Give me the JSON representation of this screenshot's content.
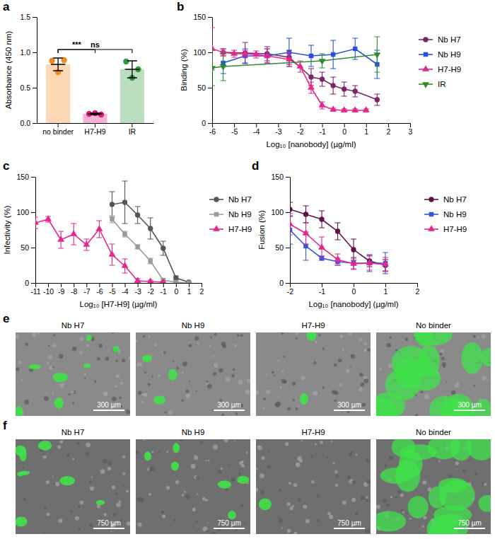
{
  "chart_data": [
    {
      "type": "bar",
      "panel_label": "a",
      "y_label": "Absorbance (450 nm)",
      "categories": [
        "no binder",
        "H7-H9",
        "IR"
      ],
      "values": [
        0.83,
        0.13,
        0.76
      ],
      "errors": [
        0.09,
        0.01,
        0.12
      ],
      "points": [
        [
          0.88,
          0.72,
          0.89
        ],
        [
          0.13,
          0.14,
          0.12
        ],
        [
          0.87,
          0.64,
          0.76
        ]
      ],
      "colors": [
        "#f5891f",
        "#e3177e",
        "#2e9a3a"
      ],
      "ylim": [
        0,
        1.5
      ],
      "yticks": [
        {
          "value": 0,
          "label": "0.0"
        },
        0.5,
        {
          "value": 1,
          "label": "1.0"
        },
        1.5
      ],
      "annotations": [
        {
          "from": "no binder",
          "to": "H7-H9",
          "label": "***"
        },
        {
          "from": "no binder",
          "to": "IR",
          "label": "ns"
        }
      ]
    },
    {
      "type": "line",
      "panel_label": "b",
      "x_label": "Log₁₀ [nanobody] (µg/ml)",
      "y_label": "Binding (%)",
      "xlim": [
        -6,
        3
      ],
      "xticks": [
        -6,
        -5,
        -4,
        -3,
        -2,
        -1,
        0,
        1,
        2,
        3
      ],
      "ylim": [
        0,
        150
      ],
      "yticks": [
        0,
        50,
        100,
        150
      ],
      "legend": "right",
      "series": [
        {
          "name": "Nb H7",
          "color": "#7b2569",
          "marker": "circle",
          "line_style": "solid",
          "x": [
            -5.5,
            -4.5,
            -3.5,
            -2.5,
            -1.5,
            -1,
            -0.5,
            0,
            0.5,
            1.5
          ],
          "values": [
            100,
            99,
            98,
            93,
            65,
            62,
            53,
            48,
            45,
            33
          ],
          "errors": [
            5,
            15,
            10,
            10,
            12,
            10,
            12,
            10,
            8,
            8
          ]
        },
        {
          "name": "Nb H9",
          "color": "#2850d8",
          "marker": "square",
          "line_style": "solid",
          "x": [
            -5.5,
            -4.5,
            -3.5,
            -2.5,
            -1.5,
            -0.5,
            0.5,
            1.5
          ],
          "values": [
            85,
            95,
            95,
            100,
            95,
            97,
            105,
            83
          ],
          "errors": [
            15,
            10,
            10,
            20,
            15,
            20,
            15,
            20
          ]
        },
        {
          "name": "H7-H9",
          "color": "#e6268c",
          "marker": "triangle",
          "line_style": "solid",
          "x": [
            -6,
            -5.5,
            -5,
            -4.5,
            -4,
            -3.5,
            -2.5,
            -2,
            -1.5,
            -1,
            -0.5,
            0,
            0.5,
            1
          ],
          "values": [
            105,
            100,
            98,
            98,
            97,
            95,
            90,
            80,
            50,
            25,
            19,
            18,
            18,
            18
          ],
          "errors": [
            30,
            5,
            5,
            5,
            5,
            10,
            10,
            8,
            8,
            5,
            2,
            2,
            2,
            2
          ]
        },
        {
          "name": "IR",
          "color": "#2e8b2e",
          "marker": "triangle-down",
          "line_style": "solid",
          "x": [
            -6,
            -5.5,
            -1,
            1.5
          ],
          "values": [
            78,
            80,
            88,
            97
          ],
          "errors": [
            25,
            20,
            10,
            25
          ]
        }
      ]
    },
    {
      "type": "line",
      "panel_label": "c",
      "x_label": "Log₁₀ [H7-H9] (µg/ml)",
      "y_label": "Infectivity (%)",
      "xlim": [
        -11,
        2
      ],
      "xticks": [
        -11,
        -10,
        -9,
        -8,
        -7,
        -6,
        -5,
        -4,
        -3,
        -2,
        -1,
        0,
        1,
        2
      ],
      "ylim": [
        0,
        150
      ],
      "yticks": [
        0,
        50,
        100,
        150
      ],
      "legend": "right",
      "series": [
        {
          "name": "Nb H7",
          "color": "#555555",
          "marker": "circle",
          "line_style": "solid",
          "x": [
            -5,
            -4,
            -3,
            -2,
            -1,
            0,
            1
          ],
          "values": [
            111,
            114,
            96,
            77,
            49,
            7,
            1
          ],
          "errors": [
            18,
            30,
            12,
            15,
            10,
            3,
            1
          ]
        },
        {
          "name": "Nb H9",
          "color": "#9a9a9a",
          "marker": "square",
          "line_style": "solid",
          "x": [
            -5,
            -4,
            -3,
            -2,
            -1,
            0,
            1
          ],
          "values": [
            90,
            69,
            51,
            31,
            4,
            1,
            0
          ],
          "errors": [
            5,
            4,
            3,
            4,
            2,
            1,
            0
          ]
        },
        {
          "name": "H7-H9",
          "color": "#e6268c",
          "marker": "triangle",
          "line_style": "solid",
          "x": [
            -11,
            -10,
            -9,
            -8,
            -7,
            -6,
            -5,
            -4,
            -3,
            -2,
            -1
          ],
          "values": [
            85,
            90,
            61,
            69,
            54,
            76,
            40,
            24,
            3,
            2,
            1
          ],
          "errors": [
            8,
            4,
            12,
            15,
            8,
            12,
            15,
            10,
            3,
            2,
            1
          ]
        }
      ]
    },
    {
      "type": "line",
      "panel_label": "d",
      "x_label": "Log₁₀ [nanobody] (µg/ml)",
      "y_label": "Fusion (%)",
      "xlim": [
        -2,
        2
      ],
      "xticks": [
        -2,
        -1,
        0,
        1,
        2
      ],
      "ylim": [
        0,
        150
      ],
      "yticks": [
        0,
        50,
        100,
        150
      ],
      "legend": "right",
      "series": [
        {
          "name": "Nb H7",
          "color": "#5e1248",
          "marker": "circle",
          "line_style": "solid",
          "x": [
            -2,
            -1.5,
            -1,
            -0.5,
            0,
            0.5,
            1
          ],
          "values": [
            104,
            97,
            90,
            73,
            47,
            31,
            25
          ],
          "errors": [
            10,
            12,
            12,
            12,
            15,
            8,
            8
          ]
        },
        {
          "name": "Nb H9",
          "color": "#3355e0",
          "marker": "square",
          "line_style": "solid",
          "x": [
            -2,
            -1.5,
            -1,
            -0.5,
            0,
            0.5,
            1
          ],
          "values": [
            75,
            52,
            35,
            30,
            28,
            28,
            28
          ],
          "errors": [
            20,
            20,
            3,
            5,
            8,
            12,
            15
          ]
        },
        {
          "name": "H7-H9",
          "color": "#e6268c",
          "marker": "triangle",
          "line_style": "solid",
          "x": [
            -2,
            -1.5,
            -1,
            -0.5,
            0,
            0.5,
            1
          ],
          "values": [
            83,
            70,
            50,
            33,
            27,
            28,
            26
          ],
          "errors": [
            15,
            15,
            15,
            8,
            8,
            10,
            10
          ]
        }
      ]
    }
  ],
  "image_panels": [
    {
      "panel_label": "e",
      "images": [
        {
          "title": "Nb H7",
          "scale_bar": "300 µm"
        },
        {
          "title": "Nb H9",
          "scale_bar": "300 µm"
        },
        {
          "title": "H7-H9",
          "scale_bar": "300 µm"
        },
        {
          "title": "No binder",
          "scale_bar": "300 µm"
        }
      ]
    },
    {
      "panel_label": "f",
      "images": [
        {
          "title": "Nb H7",
          "scale_bar": "750 µm"
        },
        {
          "title": "Nb H9",
          "scale_bar": "750 µm"
        },
        {
          "title": "H7-H9",
          "scale_bar": "750 µm"
        },
        {
          "title": "No binder",
          "scale_bar": "750 µm"
        }
      ]
    }
  ]
}
